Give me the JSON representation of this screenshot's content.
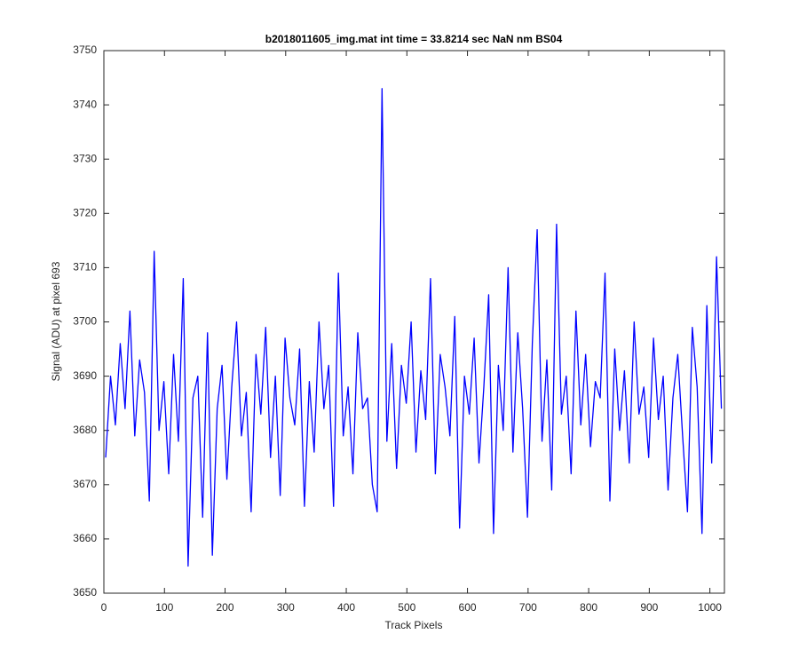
{
  "chart_data": {
    "type": "line",
    "title": "b2018011605_img.mat int time = 33.8214 sec  NaN nm BS04",
    "x_label": "Track Pixels",
    "y_label": "Signal (ADU) at pixel 693",
    "xlim": [
      0,
      1024
    ],
    "ylim": [
      3650,
      3750
    ],
    "xticks": [
      0,
      100,
      200,
      300,
      400,
      500,
      600,
      700,
      800,
      900,
      1000
    ],
    "yticks": [
      3650,
      3660,
      3670,
      3680,
      3690,
      3700,
      3710,
      3720,
      3730,
      3740,
      3750
    ],
    "x": [
      3,
      11,
      19,
      27,
      35,
      43,
      51,
      59,
      67,
      75,
      83,
      91,
      99,
      107,
      115,
      123,
      131,
      139,
      147,
      155,
      163,
      171,
      179,
      187,
      195,
      203,
      211,
      219,
      227,
      235,
      243,
      251,
      259,
      267,
      275,
      283,
      291,
      299,
      307,
      315,
      323,
      331,
      339,
      347,
      355,
      363,
      371,
      379,
      387,
      395,
      403,
      411,
      419,
      427,
      435,
      443,
      451,
      459,
      467,
      475,
      483,
      491,
      499,
      507,
      515,
      523,
      531,
      539,
      547,
      555,
      563,
      571,
      579,
      587,
      595,
      603,
      611,
      619,
      627,
      635,
      643,
      651,
      659,
      667,
      675,
      683,
      691,
      699,
      707,
      715,
      723,
      731,
      739,
      747,
      755,
      763,
      771,
      779,
      787,
      795,
      803,
      811,
      819,
      827,
      835,
      843,
      851,
      859,
      867,
      875,
      883,
      891,
      899,
      907,
      915,
      923,
      931,
      939,
      947,
      955,
      963,
      971,
      979,
      987,
      995,
      1003,
      1011,
      1019
    ],
    "series": [
      {
        "name": "signal",
        "color": "#0000ff",
        "values": [
          3675,
          3690,
          3681,
          3696,
          3684,
          3702,
          3679,
          3693,
          3687,
          3667,
          3713,
          3680,
          3689,
          3672,
          3694,
          3678,
          3708,
          3655,
          3686,
          3690,
          3664,
          3698,
          3657,
          3684,
          3692,
          3671,
          3688,
          3700,
          3679,
          3687,
          3665,
          3694,
          3683,
          3699,
          3675,
          3690,
          3668,
          3697,
          3686,
          3681,
          3695,
          3666,
          3689,
          3676,
          3700,
          3684,
          3692,
          3666,
          3709,
          3679,
          3688,
          3672,
          3698,
          3684,
          3686,
          3670,
          3665,
          3743,
          3678,
          3696,
          3673,
          3692,
          3685,
          3700,
          3676,
          3691,
          3682,
          3708,
          3672,
          3694,
          3688,
          3679,
          3701,
          3662,
          3690,
          3683,
          3697,
          3674,
          3688,
          3705,
          3661,
          3692,
          3680,
          3710,
          3676,
          3698,
          3684,
          3664,
          3696,
          3717,
          3678,
          3693,
          3669,
          3718,
          3683,
          3690,
          3672,
          3702,
          3681,
          3694,
          3677,
          3689,
          3686,
          3709,
          3667,
          3695,
          3680,
          3691,
          3674,
          3700,
          3683,
          3688,
          3675,
          3697,
          3682,
          3690,
          3669,
          3686,
          3694,
          3679,
          3665,
          3699,
          3688,
          3661,
          3703,
          3674,
          3712,
          3684
        ]
      }
    ]
  }
}
